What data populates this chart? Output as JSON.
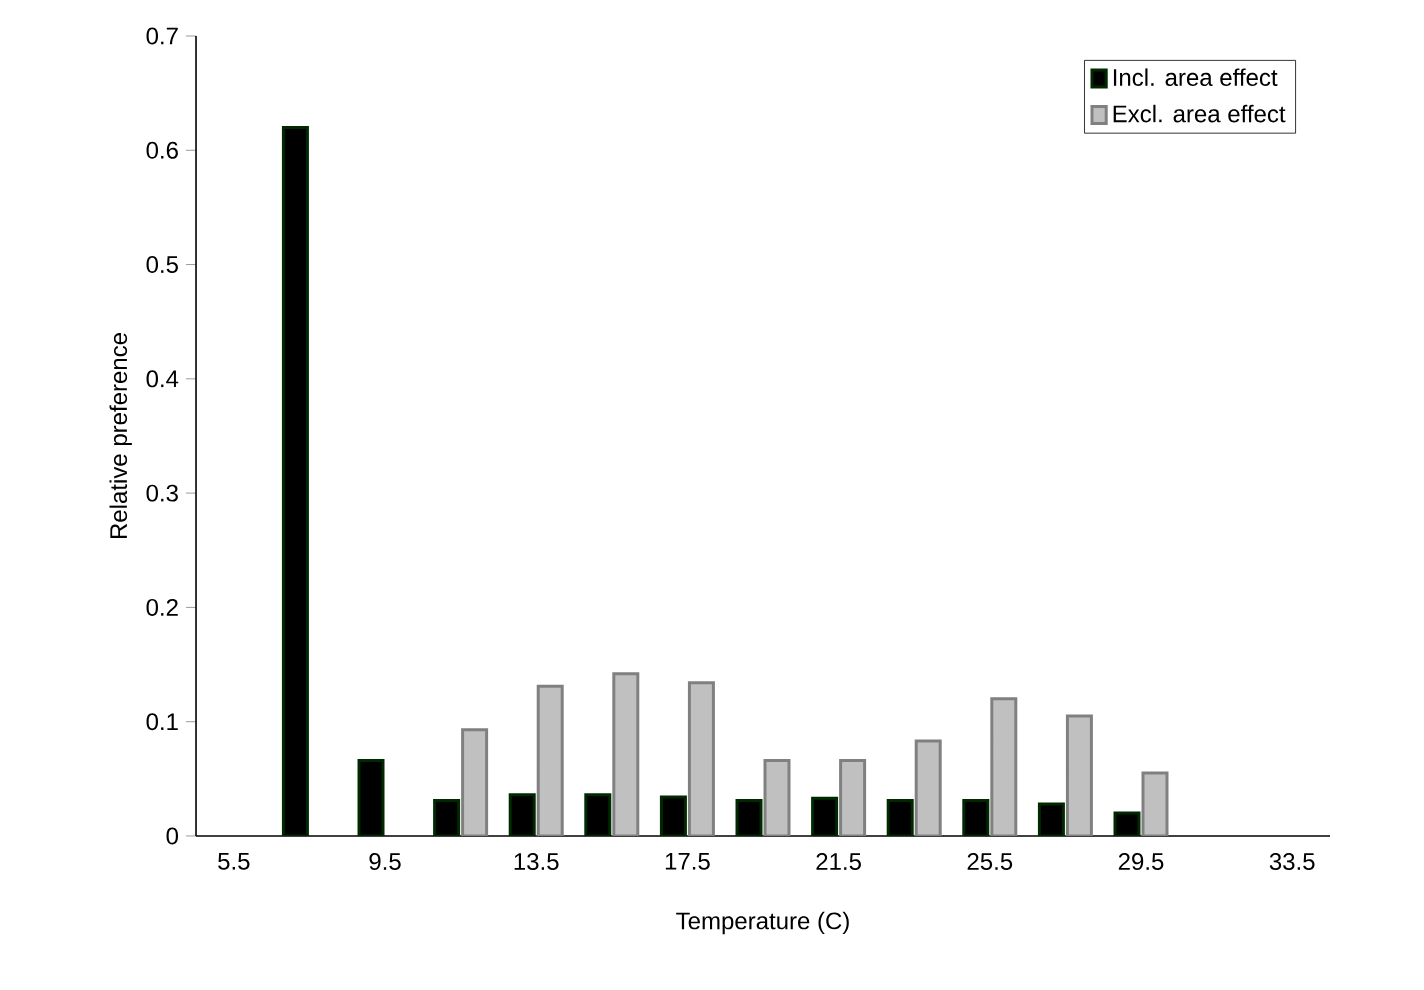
{
  "chart_data": {
    "type": "bar",
    "xlabel": "Temperature (C)",
    "ylabel": "Relative preference",
    "categories": [
      "5.5",
      null,
      "9.5",
      null,
      "13.5",
      null,
      "17.5",
      null,
      "21.5",
      null,
      "25.5",
      null,
      "29.5",
      null,
      "33.5"
    ],
    "series": [
      {
        "name": "Incl. area effect",
        "color": "#000000",
        "values": [
          null,
          0.62,
          0.066,
          0.031,
          0.036,
          0.036,
          0.034,
          0.031,
          0.033,
          0.031,
          0.031,
          0.028,
          0.02,
          null,
          null
        ]
      },
      {
        "name": "Excl. area effect",
        "color": "#c0c0c0",
        "values": [
          null,
          null,
          null,
          0.093,
          0.131,
          0.142,
          0.134,
          0.066,
          0.066,
          0.083,
          0.12,
          0.105,
          0.055,
          null,
          null
        ]
      }
    ],
    "ylim": [
      0,
      0.7
    ],
    "yticks": [
      0,
      0.1,
      0.2,
      0.3,
      0.4,
      0.5,
      0.6,
      0.7
    ],
    "legend": "top right",
    "grid": false
  }
}
